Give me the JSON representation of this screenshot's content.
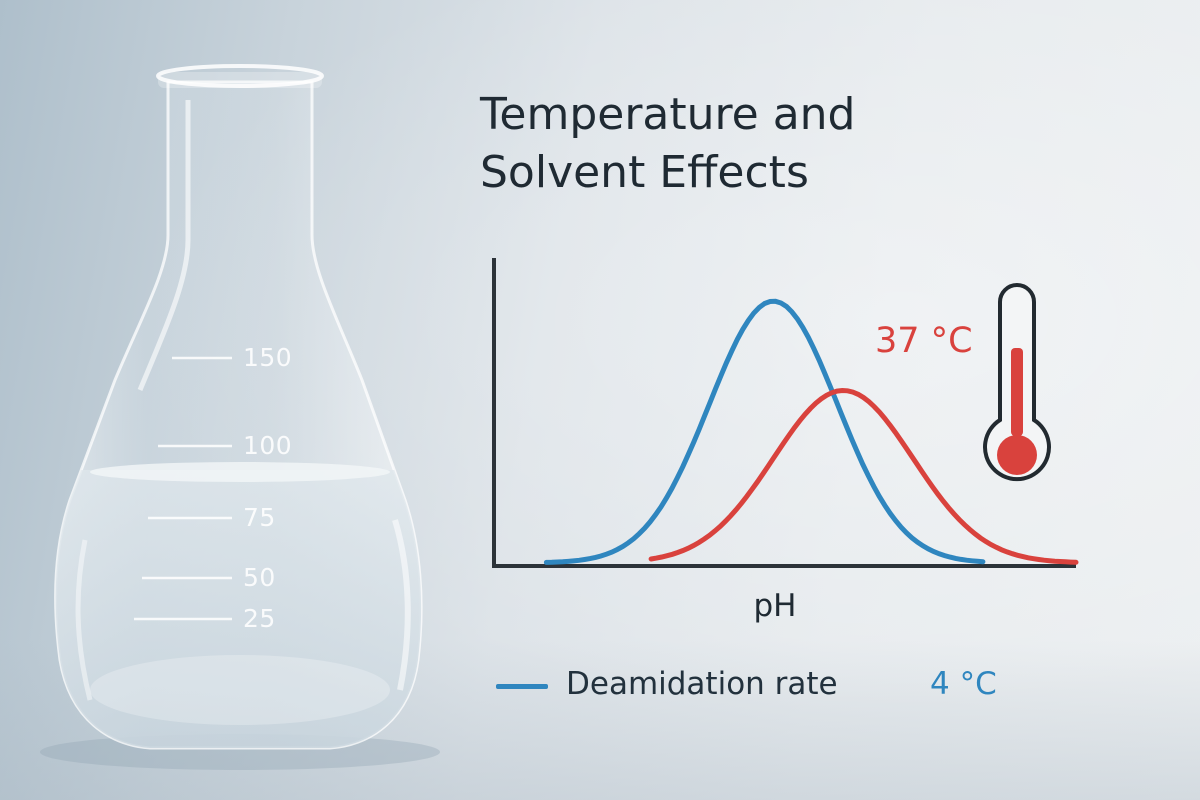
{
  "title_line1": "Temperature and",
  "title_line2": "Solvent Effects",
  "flask": {
    "marks": [
      "150",
      "100",
      "75",
      "50",
      "25"
    ]
  },
  "colors": {
    "cold": "#2f86bf",
    "warm": "#d9423d",
    "axis": "#2c3339",
    "text": "#1f2a33"
  },
  "icon": "thermometer-icon",
  "chart_data": {
    "type": "line",
    "xlabel": "pH",
    "ylabel": "",
    "title": "",
    "grid": false,
    "legend": "bottom",
    "series": [
      {
        "name": "Deamidation rate",
        "label": "4 °C",
        "color": "#2f86bf",
        "peak_x": 0.48,
        "peak_y": 0.85,
        "width": 0.11
      },
      {
        "name": "",
        "label": "37 °C",
        "color": "#d9423d",
        "peak_x": 0.6,
        "peak_y": 0.56,
        "width": 0.12
      }
    ],
    "xlim": [
      0,
      1
    ],
    "ylim": [
      0,
      1
    ]
  }
}
